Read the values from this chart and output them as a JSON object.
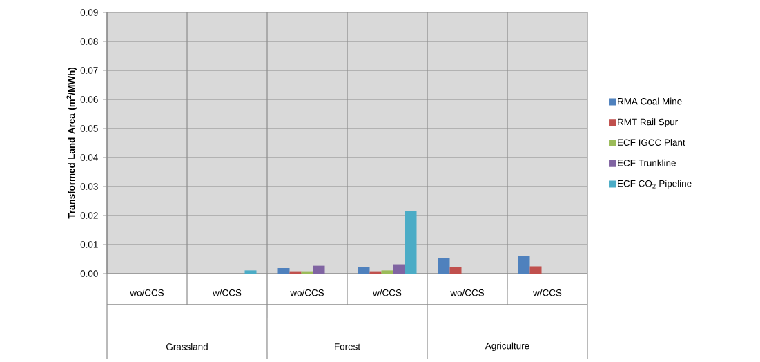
{
  "chart_data": {
    "type": "bar",
    "ylabel": "Transformed Land Area (m$^{2}$/MWh)",
    "categories": [
      "wo/CCS",
      "w/CCS",
      "wo/CCS",
      "w/CCS",
      "wo/CCS",
      "w/CCS"
    ],
    "annotations": [
      "Grassland",
      "Forest",
      "Agriculture"
    ],
    "series": [
      {
        "name": "RMA Coal Mine",
        "color": "#4f81bd",
        "values": [
          0,
          0,
          0.0019,
          0.0023,
          0.0053,
          0.0061
        ]
      },
      {
        "name": "RMT Rail Spur",
        "color": "#c0504d",
        "values": [
          0,
          0,
          0.0008,
          0.0008,
          0.0023,
          0.0025
        ]
      },
      {
        "name": "ECF IGCC Plant",
        "color": "#9bbb59",
        "values": [
          0,
          0,
          0.0008,
          0.0011,
          0,
          0
        ]
      },
      {
        "name": "ECF Trunkline",
        "color": "#8064a2",
        "values": [
          0,
          0,
          0.0027,
          0.0032,
          0,
          0
        ]
      },
      {
        "name": "ECF CO$_{2}$ Pipeline",
        "color": "#4bacc6",
        "values": [
          0,
          0.0011,
          0,
          0.0215,
          0,
          0
        ]
      }
    ],
    "ylim": [
      0,
      0.09
    ],
    "yticks": [
      {
        "value": 0,
        "label": "0.00"
      },
      {
        "value": 0.01,
        "label": "0.01"
      },
      {
        "value": 0.02,
        "label": "0.02"
      },
      {
        "value": 0.03,
        "label": "0.03"
      },
      {
        "value": 0.04,
        "label": "0.04"
      },
      {
        "value": 0.05,
        "label": "0.05"
      },
      {
        "value": 0.06,
        "label": "0.06"
      },
      {
        "value": 0.07,
        "label": "0.07"
      },
      {
        "value": 0.08,
        "label": "0.08"
      },
      {
        "value": 0.09,
        "label": "0.09"
      }
    ],
    "grid": true,
    "legend": "right"
  }
}
